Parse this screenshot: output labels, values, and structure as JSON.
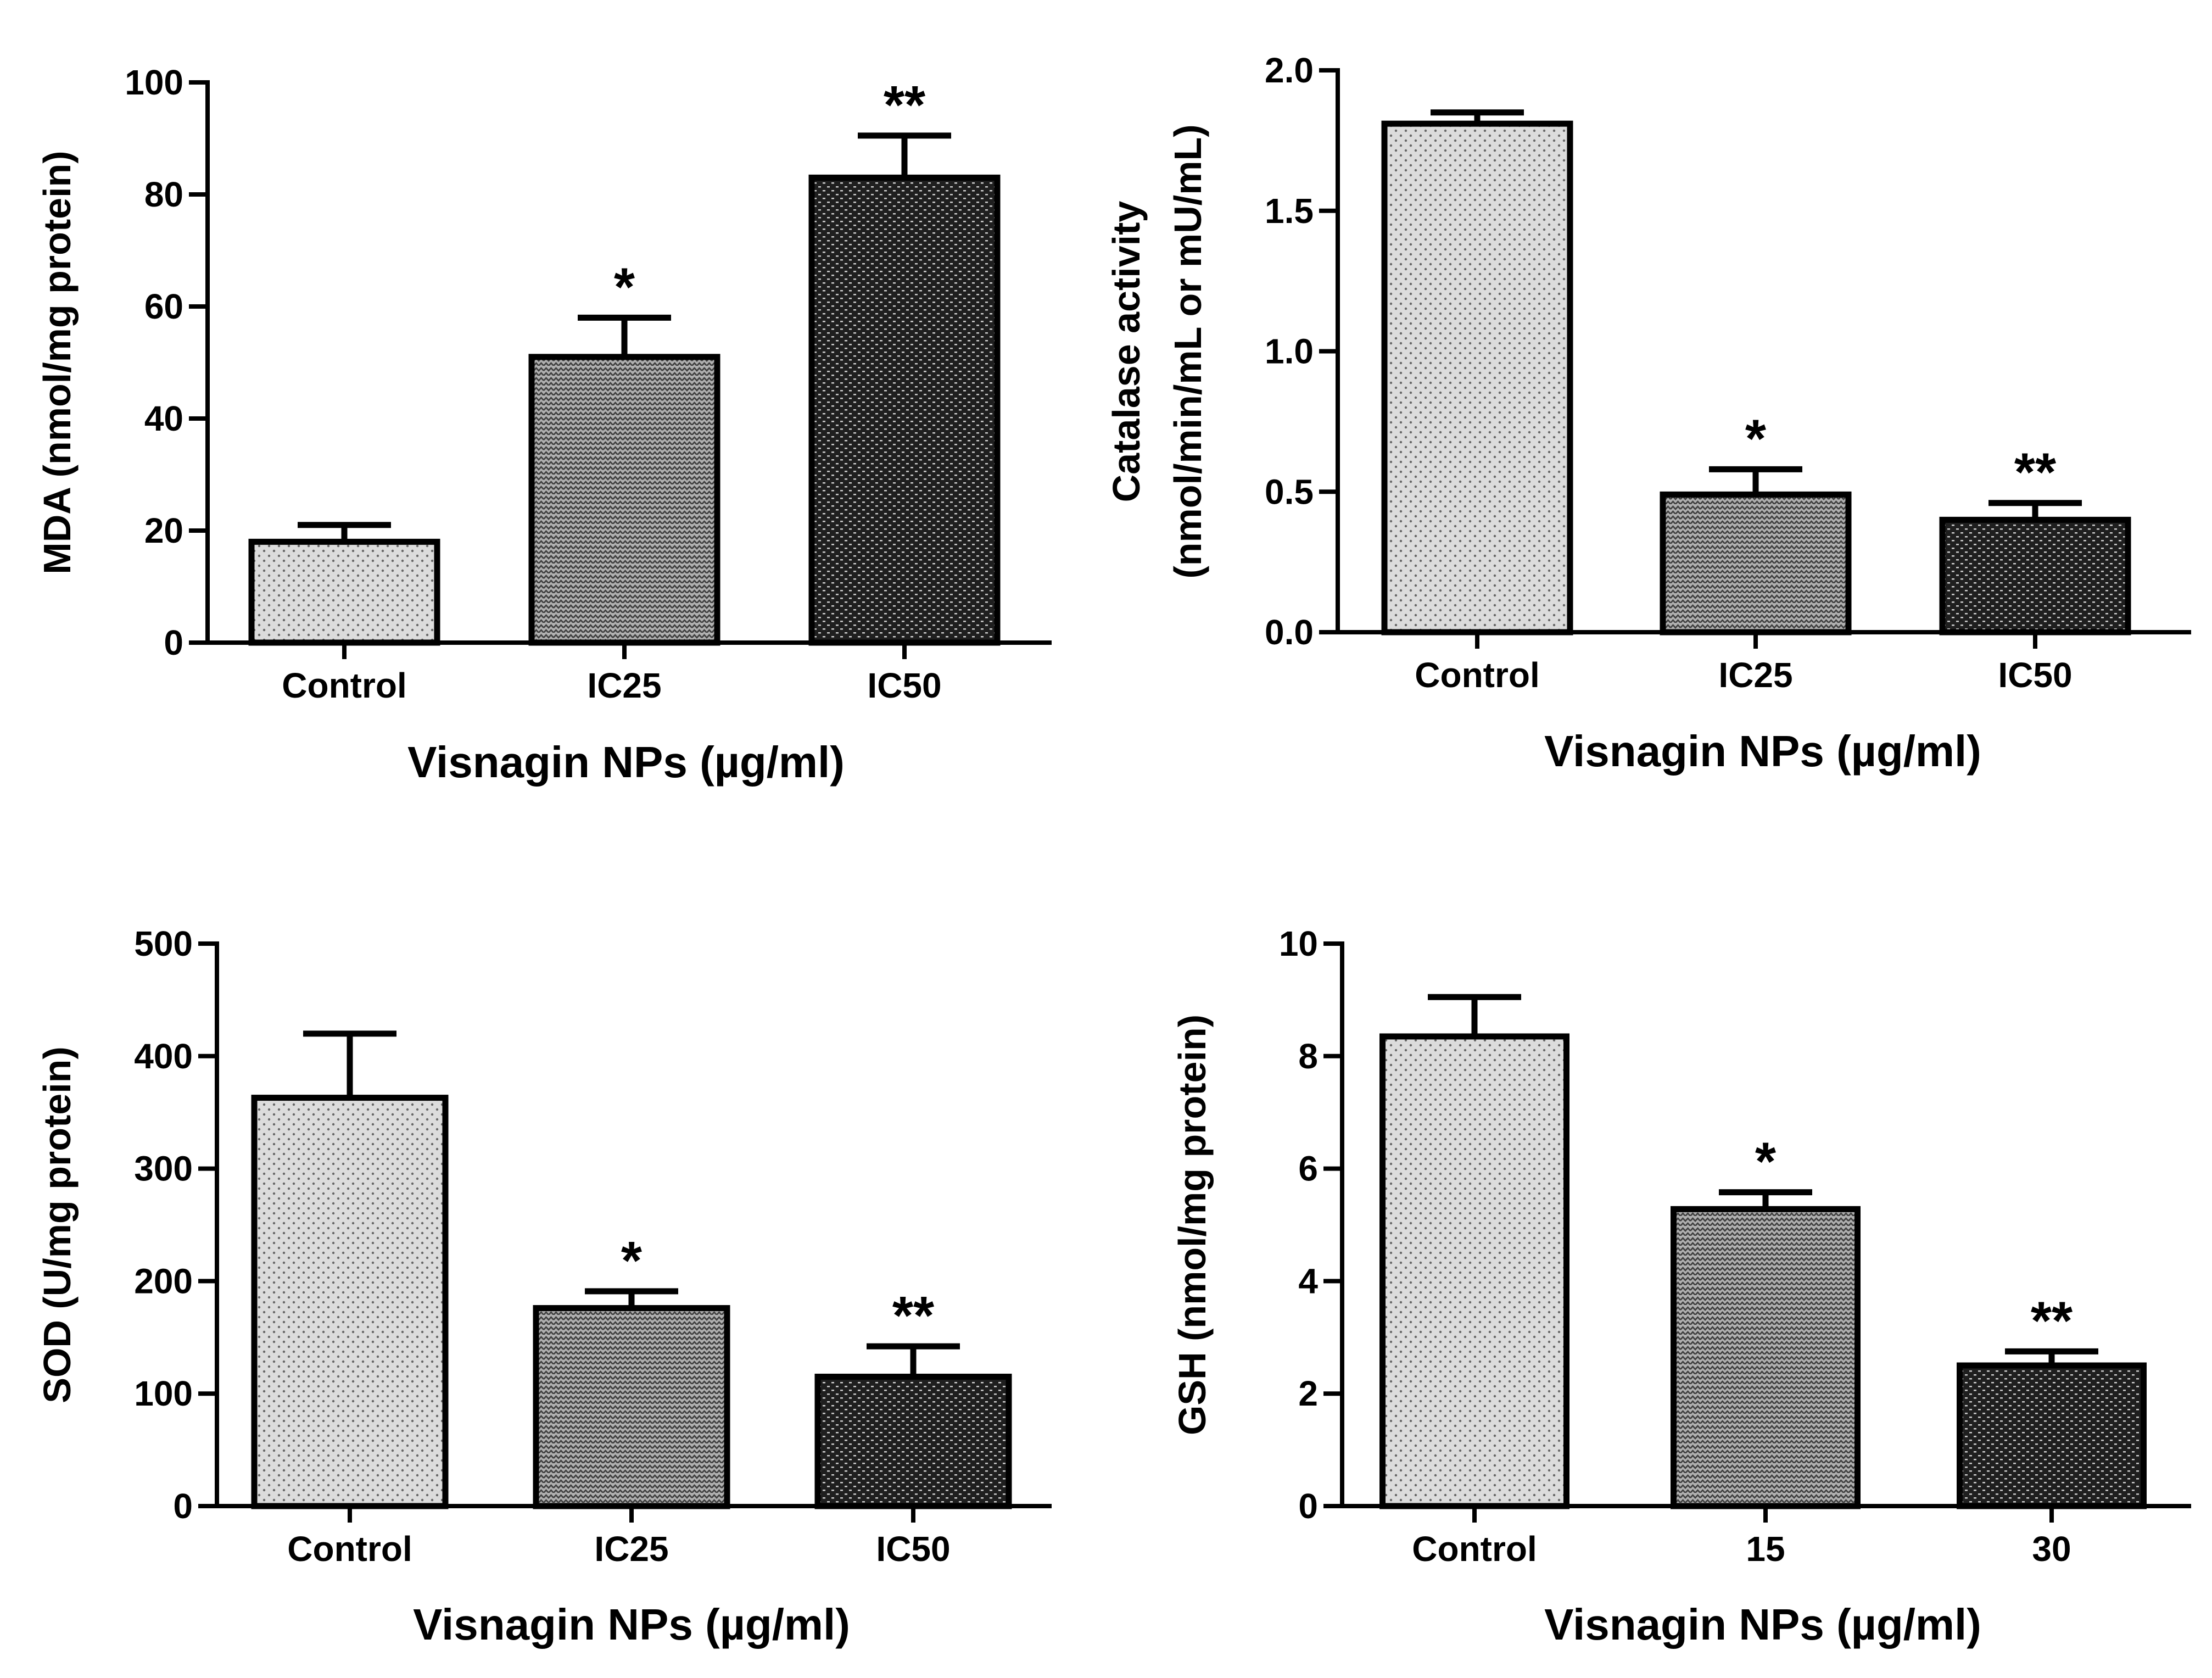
{
  "chart_data": [
    {
      "type": "bar",
      "title": "",
      "xlabel": "Visnagin NPs (µg/ml)",
      "ylabel": [
        "MDA (nmol/mg protein)"
      ],
      "ylim": [
        0,
        100
      ],
      "yticks": [
        "0",
        "20",
        "40",
        "60",
        "80",
        "100"
      ],
      "categories": [
        "Control",
        "IC25",
        "IC50"
      ],
      "values": [
        18,
        51,
        83
      ],
      "errors": [
        3,
        7,
        7.5
      ],
      "significance": [
        "",
        "*",
        "**"
      ],
      "fill_patterns": [
        "fine-dots",
        "medium-weave",
        "dark-weave"
      ]
    },
    {
      "type": "bar",
      "title": "",
      "xlabel": "Visnagin NPs (µg/ml)",
      "ylabel": [
        "Catalase activity",
        "(nmol/min/mL or mU/mL)"
      ],
      "ylim": [
        0,
        2
      ],
      "yticks": [
        "0.0",
        "0.5",
        "1.0",
        "1.5",
        "2.0"
      ],
      "categories": [
        "Control",
        "IC25",
        "IC50"
      ],
      "values": [
        1.81,
        0.49,
        0.4
      ],
      "errors": [
        0.04,
        0.09,
        0.06
      ],
      "significance": [
        "",
        "*",
        "**"
      ],
      "fill_patterns": [
        "fine-dots",
        "medium-weave",
        "dark-weave"
      ]
    },
    {
      "type": "bar",
      "title": "",
      "xlabel": "Visnagin NPs (µg/ml)",
      "ylabel": [
        "SOD (U/mg protein)"
      ],
      "ylim": [
        0,
        500
      ],
      "yticks": [
        "0",
        "100",
        "200",
        "300",
        "400",
        "500"
      ],
      "categories": [
        "Control",
        "IC25",
        "IC50"
      ],
      "values": [
        363,
        176,
        115
      ],
      "errors": [
        57,
        15,
        27
      ],
      "significance": [
        "",
        "*",
        "**"
      ],
      "fill_patterns": [
        "fine-dots",
        "medium-weave",
        "dark-weave"
      ]
    },
    {
      "type": "bar",
      "title": "",
      "xlabel": "Visnagin NPs (µg/ml)",
      "ylabel": [
        "GSH  (nmol/mg protein)"
      ],
      "ylim": [
        0,
        10
      ],
      "yticks": [
        "0",
        "2",
        "4",
        "6",
        "8",
        "10"
      ],
      "categories": [
        "Control",
        "15",
        "30"
      ],
      "values": [
        8.35,
        5.28,
        2.5
      ],
      "errors": [
        0.7,
        0.3,
        0.25
      ],
      "significance": [
        "",
        "*",
        "**"
      ],
      "fill_patterns": [
        "fine-dots",
        "medium-weave",
        "dark-weave"
      ]
    }
  ],
  "colors": {
    "axis": "#000000",
    "bar_light_bg": "#dcdcdc",
    "bar_medium_bg": "#b0b0b0",
    "bar_dark_bg": "#1f1f1f",
    "pattern_light_ink": "#666666",
    "pattern_medium_ink": "#3e3e3e",
    "pattern_dark_ink": "#cfcfcf"
  }
}
